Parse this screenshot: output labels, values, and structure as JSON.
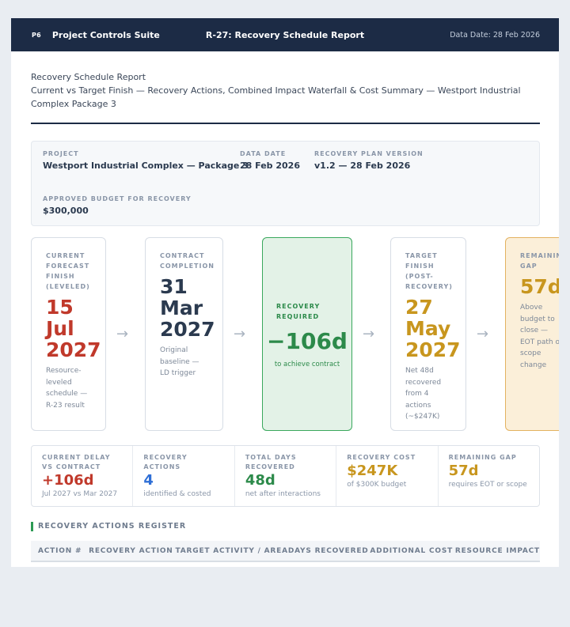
{
  "app": {
    "logo": "P6",
    "name": "Project Controls Suite",
    "report_title": "R-27: Recovery Schedule Report",
    "data_date": "Data Date: 28 Feb 2026"
  },
  "report": {
    "heading": "Recovery Schedule Report",
    "subtitle": "Current vs Target Finish — Recovery Actions, Combined Impact Waterfall & Cost Summary — Westport Industrial Complex Package 3"
  },
  "meta": {
    "project_label": "PROJECT",
    "project_value": "Westport Industrial Complex — Package 3",
    "data_date_label": "DATA DATE",
    "data_date_value": "28 Feb 2026",
    "version_label": "RECOVERY PLAN VERSION",
    "version_value": "v1.2 — 28 Feb 2026",
    "budget_label": "APPROVED BUDGET FOR RECOVERY",
    "budget_value": "$300,000"
  },
  "flow": {
    "arrow": "→",
    "current": {
      "label": "CURRENT FORECAST FINISH (LEVELED)",
      "value": "15 Jul 2027",
      "note": "Resource-leveled schedule — R-23 result"
    },
    "contract": {
      "label": "CONTRACT COMPLETION",
      "value": "31 Mar 2027",
      "note": "Original baseline — LD trigger"
    },
    "required": {
      "label": "RECOVERY REQUIRED",
      "value": "−106d",
      "note": "to achieve contract"
    },
    "target": {
      "label": "TARGET FINISH (POST-RECOVERY)",
      "value": "27 May 2027",
      "note": "Net 48d recovered from 4 actions (~$247K)"
    },
    "gap": {
      "label": "REMAINING GAP",
      "value": "57d",
      "note": "Above budget to close — EOT path or scope change"
    }
  },
  "stats": [
    {
      "label": "CURRENT DELAY VS CONTRACT",
      "value": "+106d",
      "sub": "Jul 2027 vs Mar 2027",
      "color": "#c0392b"
    },
    {
      "label": "RECOVERY ACTIONS",
      "value": "4",
      "sub": "identified & costed",
      "color": "#2f6fd6"
    },
    {
      "label": "TOTAL DAYS RECOVERED",
      "value": "48d",
      "sub": "net after interactions",
      "color": "#2c8a4a"
    },
    {
      "label": "RECOVERY COST",
      "value": "$247K",
      "sub": "of $300K budget",
      "color": "#c8961e"
    },
    {
      "label": "REMAINING GAP",
      "value": "57d",
      "sub": "requires EOT or scope",
      "color": "#c8961e"
    }
  ],
  "register": {
    "title": "RECOVERY ACTIONS REGISTER",
    "columns": [
      "ACTION #",
      "RECOVERY ACTION",
      "TARGET ACTIVITY / AREA",
      "DAYS RECOVERED",
      "ADDITIONAL COST",
      "RESOURCE IMPACT"
    ]
  },
  "colors": {
    "red": "#c0392b",
    "navy": "#2b3a4f",
    "green": "#2c8a4a",
    "amber": "#c8961e",
    "blue": "#2f6fd6"
  }
}
